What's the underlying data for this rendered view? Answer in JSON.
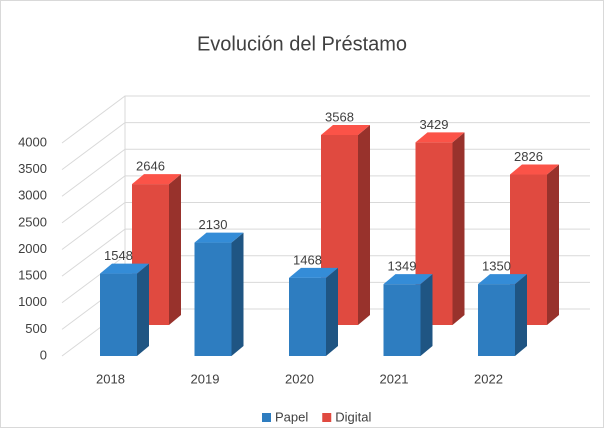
{
  "chart_data": {
    "type": "bar3d",
    "title": "Evolución del Préstamo",
    "categories": [
      "2018",
      "2019",
      "2020",
      "2021",
      "2022"
    ],
    "series": [
      {
        "name": "Papel",
        "color": "#2e7dc0",
        "values": [
          1548,
          2130,
          1468,
          1349,
          1350
        ]
      },
      {
        "name": "Digital",
        "color": "#e04a40",
        "values": [
          2646,
          null,
          3568,
          3429,
          2826
        ]
      }
    ],
    "ylim": [
      0,
      4000
    ],
    "yticks": [
      0,
      500,
      1000,
      1500,
      2000,
      2500,
      3000,
      3500,
      4000
    ],
    "grid": true,
    "legend": "bottom"
  }
}
